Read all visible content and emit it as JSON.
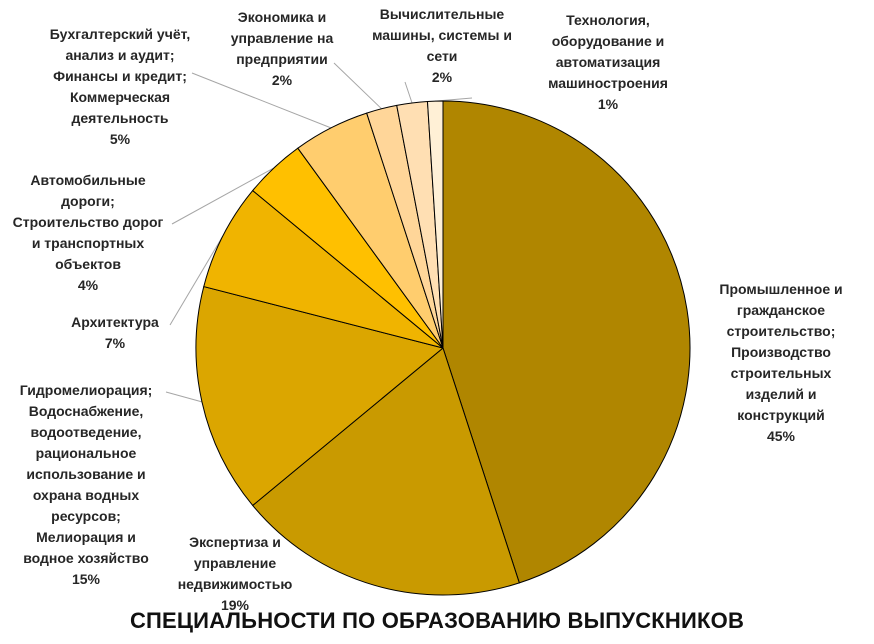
{
  "chart_data": {
    "type": "pie",
    "title": "СПЕЦИАЛЬНОСТИ ПО ОБРАЗОВАНИЮ ВЫПУСКНИКОВ",
    "slices": [
      {
        "label": "Промышленное и гражданское строительство; Производство строительных изделий и конструкций",
        "lines": [
          "Промышленное и",
          "гражданское",
          "строительство;",
          "Производство",
          "строительных",
          "изделий и",
          "конструкций"
        ],
        "value": 45,
        "value_label": "45%",
        "color": "#b08600"
      },
      {
        "label": "Экспертиза и управление недвижимостью",
        "lines": [
          "Экспертиза и",
          "управление",
          "недвижимостью"
        ],
        "value": 19,
        "value_label": "19%",
        "color": "#c99a00"
      },
      {
        "label": "Гидромелиорация; Водоснабжение, водоотведение, рациональное использование и охрана водных ресурсов; Мелиорация и водное хозяйство",
        "lines": [
          "Гидромелиорация;",
          "Водоснабжение,",
          "водоотведение,",
          "рациональное",
          "использование и",
          "охрана водных",
          "ресурсов;",
          "Мелиорация и",
          "водное хозяйство"
        ],
        "value": 15,
        "value_label": "15%",
        "color": "#dba600"
      },
      {
        "label": "Архитектура",
        "lines": [
          "Архитектура"
        ],
        "value": 7,
        "value_label": "7%",
        "color": "#f0b400"
      },
      {
        "label": "Автомобильные дороги; Строительство дорог и транспортных объектов",
        "lines": [
          "Автомобильные",
          "дороги;",
          "Строительство дорог",
          "и транспортных",
          "объектов"
        ],
        "value": 4,
        "value_label": "4%",
        "color": "#ffc000"
      },
      {
        "label": "Бухгалтерский учёт, анализ и аудит; Финансы и кредит; Коммерческая деятельность",
        "lines": [
          "Бухгалтерский учёт,",
          "анализ и аудит;",
          "Финансы и кредит;",
          "Коммерческая",
          "деятельность"
        ],
        "value": 5,
        "value_label": "5%",
        "color": "#ffcd6e"
      },
      {
        "label": "Экономика и управление на предприятии",
        "lines": [
          "Экономика и",
          "управление на",
          "предприятии"
        ],
        "value": 2,
        "value_label": "2%",
        "color": "#ffd699"
      },
      {
        "label": "Вычислительные машины, системы и сети",
        "lines": [
          "Вычислительные",
          "машины, системы и",
          "сети"
        ],
        "value": 2,
        "value_label": "2%",
        "color": "#ffdfb3"
      },
      {
        "label": "Технология, оборудование и автоматизация машиностроения",
        "lines": [
          "Технология,",
          "оборудование и",
          "автоматизация",
          "машиностроения"
        ],
        "value": 1,
        "value_label": "1%",
        "color": "#fff0d6"
      }
    ],
    "legend": "none",
    "data_labels": "outside with leader lines"
  }
}
